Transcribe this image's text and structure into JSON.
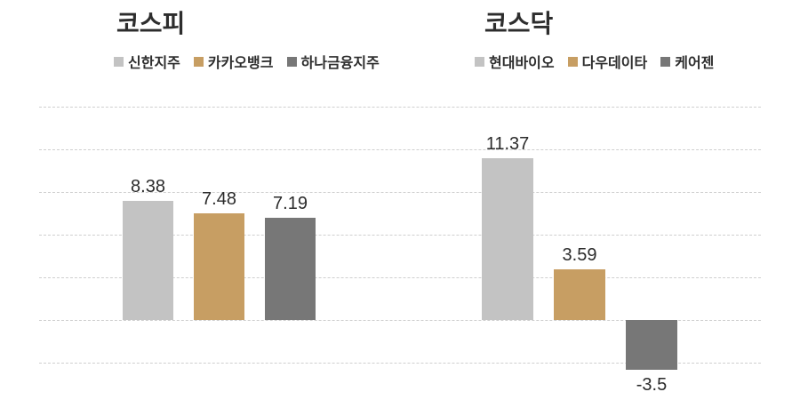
{
  "page": {
    "background": "#ffffff",
    "text_color": "#2d2d2d",
    "grid_color": "#cfcfcf"
  },
  "chart_data": [
    {
      "type": "bar",
      "title": "코스피",
      "categories": [
        "신한지주",
        "카카오뱅크",
        "하나금융지주"
      ],
      "values": [
        8.38,
        7.48,
        7.19
      ],
      "data_labels": [
        "8.38",
        "7.48",
        "7.19"
      ],
      "colors": [
        "#c3c3c3",
        "#c79e63",
        "#777777"
      ],
      "xlabel": "",
      "ylabel": "",
      "ylim": [
        -3,
        15
      ],
      "grid_step": 3,
      "grid": "horizontal-dashed",
      "axis_tick_labels": "none",
      "legend_position": "top-left"
    },
    {
      "type": "bar",
      "title": "코스닥",
      "categories": [
        "현대바이오",
        "다우데이타",
        "케어젠"
      ],
      "values": [
        11.37,
        3.59,
        -3.5
      ],
      "data_labels": [
        "11.37",
        "3.59",
        "-3.5"
      ],
      "colors": [
        "#c3c3c3",
        "#c79e63",
        "#777777"
      ],
      "xlabel": "",
      "ylabel": "",
      "ylim": [
        -3,
        15
      ],
      "grid_step": 3,
      "grid": "horizontal-dashed",
      "axis_tick_labels": "none",
      "legend_position": "top-left"
    }
  ]
}
